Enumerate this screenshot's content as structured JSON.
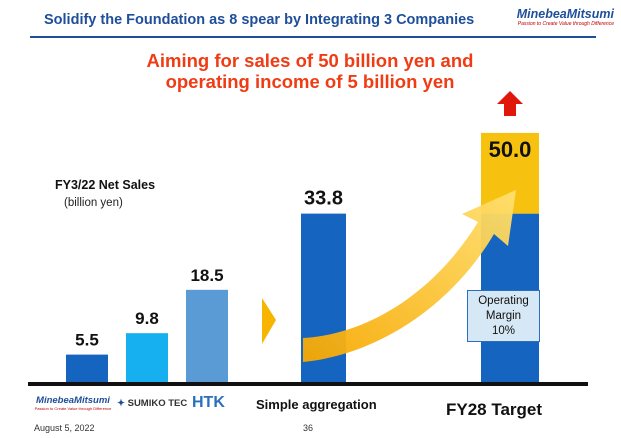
{
  "header": {
    "title": "Solidify the Foundation as 8 spear by Integrating 3 Companies",
    "logo_text": "MinebeaMitsumi",
    "logo_tagline": "Passion to Create Value through Difference"
  },
  "headline": {
    "line1": "Aiming for sales of 50 billion yen and",
    "line2": "operating income of 5 billion yen"
  },
  "chart_data": {
    "type": "bar",
    "title": "FY3/22 Net Sales",
    "ylabel": "(billion yen)",
    "categories": [
      "MinebeaMitsumi",
      "SUMIKO TEC",
      "HTK",
      "Simple aggregation",
      "FY28 Target"
    ],
    "values": [
      5.5,
      9.8,
      18.5,
      33.8,
      50.0
    ],
    "labels": [
      "5.5",
      "9.8",
      "18.5",
      "33.8",
      "50.0"
    ],
    "ylim": [
      0,
      55
    ],
    "colors": [
      "#1565c0",
      "#16b0f0",
      "#5b9bd5",
      "#1565c0",
      "#1565c0"
    ],
    "target_base": 33.8,
    "target_base_color": "#1565c0",
    "target_increment_color": "#f7c20f",
    "arrow_colors": [
      "#f7a800",
      "#ffe070"
    ],
    "up_arrow_color": "#e0180c",
    "grid": false,
    "legend": "none"
  },
  "annotation": {
    "line1": "Operating",
    "line2": "Margin",
    "line3": "10%"
  },
  "company_logos": {
    "minebea": "MinebeaMitsumi",
    "minebea_tagline": "Passion to Create Value through Difference",
    "sumiko": "SUMIKO TEC",
    "sumiko_mark": "✦",
    "htk": "HTK"
  },
  "category_labels": {
    "aggregation": "Simple aggregation",
    "target": "FY28 Target"
  },
  "footer": {
    "date": "August 5, 2022",
    "page": "36"
  }
}
